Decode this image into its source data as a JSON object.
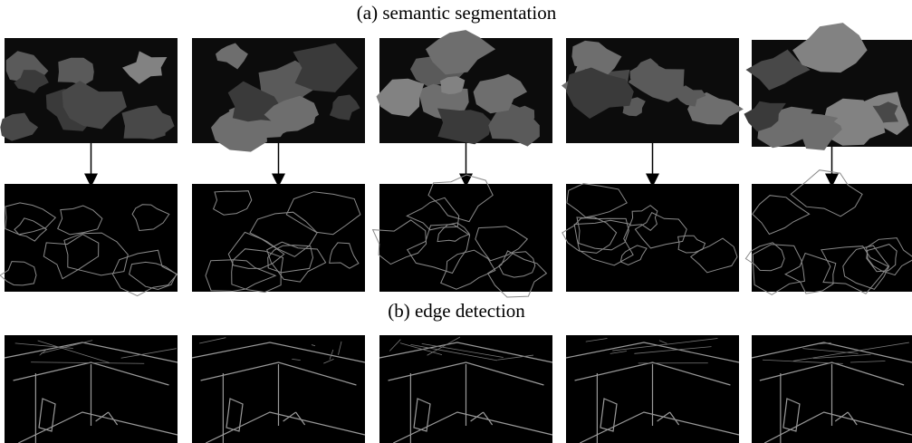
{
  "captions": {
    "a": "(a) semantic segmentation",
    "b": "(b) edge detection"
  }
}
